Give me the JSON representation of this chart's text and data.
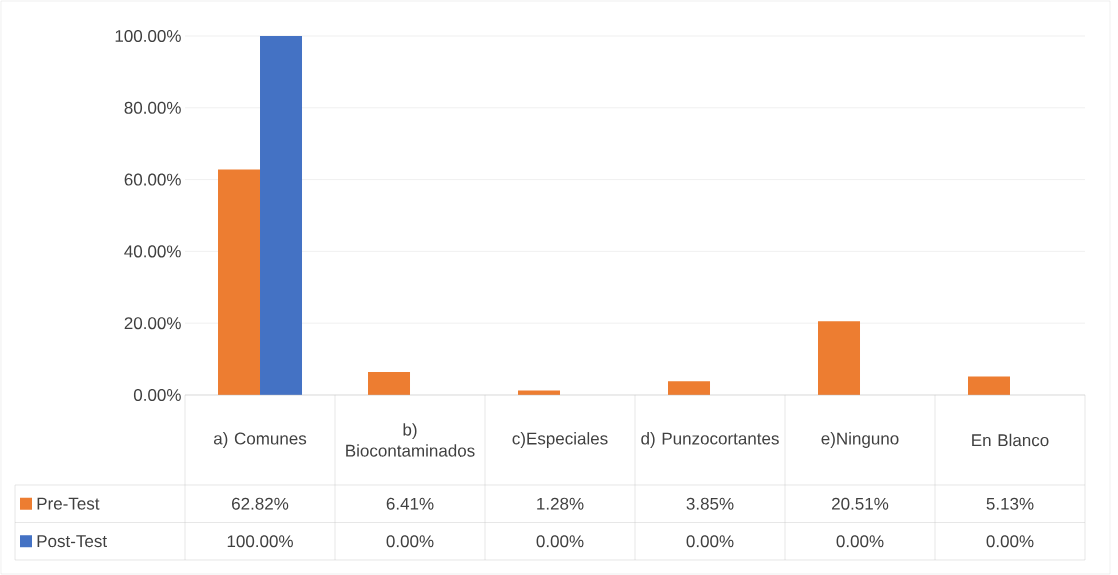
{
  "chart_data": {
    "type": "bar",
    "categories": [
      "a) Comunes",
      "b) Biocontaminados",
      "c)Especiales",
      "d) Punzocortantes",
      "e)Ninguno",
      "En Blanco"
    ],
    "series": [
      {
        "name": "Pre-Test",
        "color": "#ed7d31",
        "values": [
          62.82,
          6.41,
          1.28,
          3.85,
          20.51,
          5.13
        ],
        "value_labels": [
          "62.82%",
          "6.41%",
          "1.28%",
          "3.85%",
          "20.51%",
          "5.13%"
        ]
      },
      {
        "name": "Post-Test",
        "color": "#4472c4",
        "values": [
          100,
          0,
          0,
          0,
          0,
          0
        ],
        "value_labels": [
          "100.00%",
          "0.00%",
          "0.00%",
          "0.00%",
          "0.00%",
          "0.00%"
        ]
      }
    ],
    "ylim": [
      0,
      100
    ],
    "yticks": [
      {
        "value": 0,
        "label": "0.00%"
      },
      {
        "value": 20,
        "label": "20.00%"
      },
      {
        "value": 40,
        "label": "40.00%"
      },
      {
        "value": 60,
        "label": "60.00%"
      },
      {
        "value": 80,
        "label": "80.00%"
      },
      {
        "value": 100,
        "label": "100.00%"
      }
    ],
    "grid": "y",
    "legend": "bottom"
  }
}
